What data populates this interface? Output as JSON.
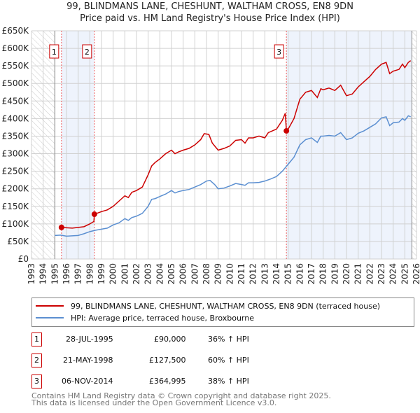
{
  "chart_data": {
    "type": "line",
    "title": "99, BLINDMANS LANE, CHESHUNT, WALTHAM CROSS, EN8 9DN",
    "subtitle": "Price paid vs. HM Land Registry's House Price Index (HPI)",
    "xlim": [
      1993,
      2026
    ],
    "ylim": [
      0,
      650000
    ],
    "x_ticks": [
      "1993",
      "1994",
      "1995",
      "1996",
      "1997",
      "1998",
      "1999",
      "2000",
      "2001",
      "2002",
      "2003",
      "2004",
      "2005",
      "2006",
      "2007",
      "2008",
      "2009",
      "2010",
      "2011",
      "2012",
      "2013",
      "2014",
      "2015",
      "2016",
      "2017",
      "2018",
      "2019",
      "2020",
      "2021",
      "2022",
      "2023",
      "2024",
      "2025",
      "2026"
    ],
    "y_ticks": [
      {
        "v": 0,
        "label": "£0"
      },
      {
        "v": 50000,
        "label": "£50K"
      },
      {
        "v": 100000,
        "label": "£100K"
      },
      {
        "v": 150000,
        "label": "£150K"
      },
      {
        "v": 200000,
        "label": "£200K"
      },
      {
        "v": 250000,
        "label": "£250K"
      },
      {
        "v": 300000,
        "label": "£300K"
      },
      {
        "v": 350000,
        "label": "£350K"
      },
      {
        "v": 400000,
        "label": "£400K"
      },
      {
        "v": 450000,
        "label": "£450K"
      },
      {
        "v": 500000,
        "label": "£500K"
      },
      {
        "v": 550000,
        "label": "£550K"
      },
      {
        "v": 600000,
        "label": "£600K"
      },
      {
        "v": 650000,
        "label": "£650K"
      }
    ],
    "grid": true,
    "data_start": 1995.0,
    "data_end": 2025.6,
    "series": [
      {
        "name": "99, BLINDMANS LANE, CHESHUNT, WALTHAM CROSS, EN8 9DN (terraced house)",
        "color": "#cc0000",
        "x": [
          1995.57,
          1996,
          1996.5,
          1997,
          1997.5,
          1998,
          1998.35,
          1998.39,
          1999,
          1999.5,
          2000,
          2000.5,
          2001,
          2001.3,
          2001.6,
          2002,
          2002.5,
          2003,
          2003.3,
          2003.6,
          2004,
          2004.5,
          2005,
          2005.3,
          2005.6,
          2006,
          2006.5,
          2007,
          2007.5,
          2007.8,
          2008.2,
          2008.5,
          2009,
          2009.5,
          2010,
          2010.5,
          2011,
          2011.3,
          2011.6,
          2012,
          2012.5,
          2013,
          2013.3,
          2014,
          2014.5,
          2014.75,
          2014.85,
          2015,
          2015.5,
          2016,
          2016.5,
          2017,
          2017.5,
          2017.8,
          2018,
          2018.5,
          2019,
          2019.5,
          2020,
          2020.5,
          2021,
          2021.5,
          2022,
          2022.5,
          2023,
          2023.4,
          2023.7,
          2024,
          2024.5,
          2024.8,
          2025,
          2025.3,
          2025.5
        ],
        "y": [
          90000,
          89000,
          88000,
          90000,
          92000,
          100000,
          107000,
          127500,
          135000,
          140000,
          150000,
          165000,
          180000,
          175000,
          190000,
          195000,
          205000,
          240000,
          265000,
          275000,
          285000,
          300000,
          310000,
          300000,
          305000,
          310000,
          315000,
          325000,
          340000,
          357000,
          355000,
          330000,
          310000,
          315000,
          322000,
          338000,
          340000,
          330000,
          345000,
          345000,
          350000,
          345000,
          360000,
          370000,
          395000,
          415000,
          365000,
          370000,
          400000,
          455000,
          475000,
          480000,
          460000,
          485000,
          482000,
          487000,
          480000,
          495000,
          465000,
          470000,
          490000,
          505000,
          520000,
          540000,
          555000,
          560000,
          528000,
          535000,
          540000,
          555000,
          545000,
          560000,
          565000
        ]
      },
      {
        "name": "HPI: Average price, terraced house, Broxbourne",
        "color": "#5b8fd1",
        "x": [
          1995,
          1995.5,
          1996,
          1996.5,
          1997,
          1997.5,
          1998,
          1998.5,
          1999,
          1999.5,
          2000,
          2000.5,
          2001,
          2001.3,
          2001.6,
          2002,
          2002.5,
          2003,
          2003.3,
          2003.6,
          2004,
          2004.5,
          2005,
          2005.3,
          2005.6,
          2006,
          2006.5,
          2007,
          2007.5,
          2008,
          2008.3,
          2008.7,
          2009,
          2009.5,
          2010,
          2010.5,
          2011,
          2011.3,
          2011.6,
          2012,
          2012.5,
          2013,
          2013.5,
          2014,
          2014.5,
          2015,
          2015.5,
          2016,
          2016.5,
          2017,
          2017.5,
          2017.8,
          2018,
          2018.5,
          2019,
          2019.5,
          2020,
          2020.5,
          2021,
          2021.5,
          2022,
          2022.5,
          2023,
          2023.4,
          2023.7,
          2024,
          2024.5,
          2024.8,
          2025,
          2025.3,
          2025.5
        ],
        "y": [
          67000,
          68000,
          65000,
          66000,
          67000,
          72000,
          78000,
          82000,
          85000,
          88000,
          97000,
          103000,
          115000,
          110000,
          118000,
          122000,
          130000,
          150000,
          170000,
          172000,
          178000,
          185000,
          195000,
          188000,
          192000,
          195000,
          198000,
          205000,
          212000,
          222000,
          224000,
          212000,
          200000,
          202000,
          208000,
          215000,
          212000,
          210000,
          217000,
          217000,
          218000,
          222000,
          228000,
          235000,
          250000,
          270000,
          290000,
          325000,
          340000,
          345000,
          332000,
          350000,
          350000,
          352000,
          350000,
          360000,
          340000,
          345000,
          358000,
          365000,
          375000,
          385000,
          402000,
          405000,
          380000,
          388000,
          390000,
          400000,
          395000,
          408000,
          405000
        ]
      }
    ],
    "shaded_periods": [
      [
        1995.57,
        1998.39
      ],
      [
        2014.85,
        2025.6
      ]
    ],
    "hatched_periods": [
      [
        1993,
        1995.0
      ],
      [
        2025.6,
        2026
      ]
    ],
    "transactions": [
      {
        "label": "1",
        "x": 1995.57,
        "y": 90000
      },
      {
        "label": "2",
        "x": 1998.39,
        "y": 127500
      },
      {
        "label": "3",
        "x": 2014.85,
        "y": 364995
      }
    ]
  },
  "table": [
    {
      "num": "1",
      "date": "28-JUL-1995",
      "price": "£90,000",
      "hpi": "36% ↑ HPI"
    },
    {
      "num": "2",
      "date": "21-MAY-1998",
      "price": "£127,500",
      "hpi": "60% ↑ HPI"
    },
    {
      "num": "3",
      "date": "06-NOV-2014",
      "price": "£364,995",
      "hpi": "38% ↑ HPI"
    }
  ],
  "footer": {
    "line1": "Contains HM Land Registry data © Crown copyright and database right 2025.",
    "line2": "This data is licensed under the Open Government Licence v3.0."
  }
}
